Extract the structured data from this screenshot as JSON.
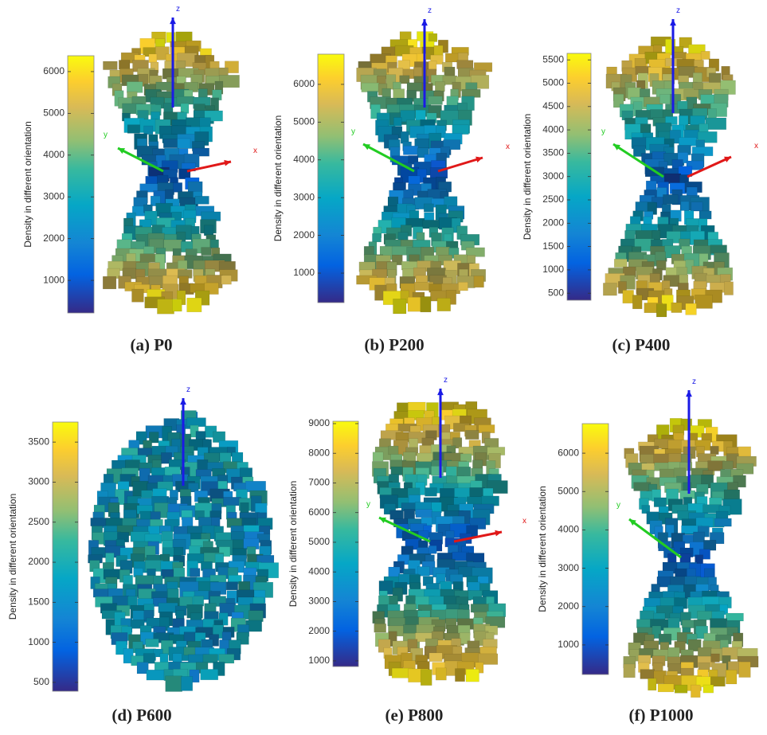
{
  "panels": [
    {
      "caption": "(a) P0",
      "colorbar": {
        "label": "Density in different orientation",
        "lim": [
          220,
          6380
        ],
        "ticks": [
          1000,
          2000,
          3000,
          4000,
          5000,
          6000
        ]
      },
      "axis_labels": {
        "z": "z",
        "y": "y",
        "x": "x"
      }
    },
    {
      "caption": "(b) P200",
      "colorbar": {
        "label": "Density in different orientation",
        "lim": [
          220,
          6800
        ],
        "ticks": [
          1000,
          2000,
          3000,
          4000,
          5000,
          6000
        ]
      },
      "axis_labels": {
        "z": "z",
        "y": "y",
        "x": "x"
      }
    },
    {
      "caption": "(c) P400",
      "colorbar": {
        "label": "Density in different orientation",
        "lim": [
          350,
          5640
        ],
        "ticks": [
          500,
          1000,
          1500,
          2000,
          2500,
          3000,
          3500,
          4000,
          4500,
          5000,
          5500
        ]
      },
      "axis_labels": {
        "z": "z",
        "y": "y",
        "x": "x"
      }
    },
    {
      "caption": "(d) P600",
      "colorbar": {
        "label": "Density in different orientation",
        "lim": [
          390,
          3750
        ],
        "ticks": [
          500,
          1000,
          1500,
          2000,
          2500,
          3000,
          3500
        ]
      },
      "axis_labels": {
        "z": "z"
      }
    },
    {
      "caption": "(e) P800",
      "colorbar": {
        "label": "Density in different orientation",
        "lim": [
          810,
          9080
        ],
        "ticks": [
          1000,
          2000,
          3000,
          4000,
          5000,
          6000,
          7000,
          8000,
          9000
        ]
      },
      "axis_labels": {
        "z": "z",
        "y": "y",
        "x": "x"
      }
    },
    {
      "caption": "(f) P1000",
      "colorbar": {
        "label": "Density in different orientation",
        "lim": [
          230,
          6770
        ],
        "ticks": [
          1000,
          2000,
          3000,
          4000,
          5000,
          6000
        ]
      },
      "axis_labels": {
        "z": "z",
        "y": "y"
      }
    }
  ]
}
